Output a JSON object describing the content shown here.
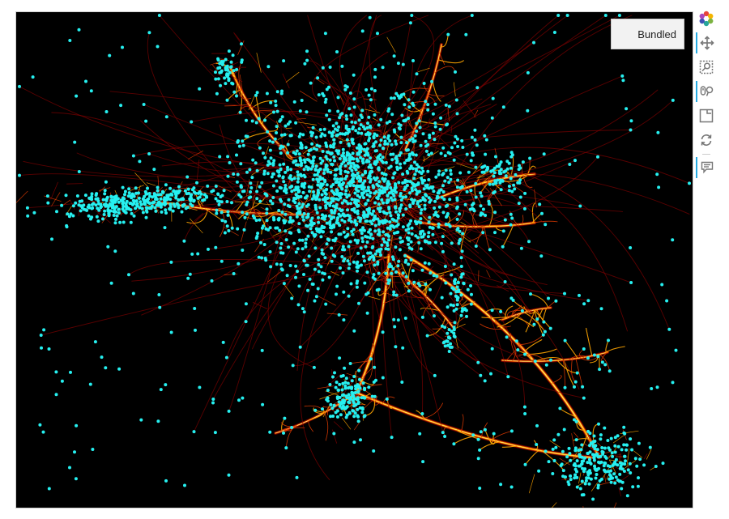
{
  "legend": {
    "label": "Bundled"
  },
  "colors": {
    "background": "#000000",
    "node": "#26f0f0",
    "edge_dark": "#8b0000",
    "edge_mid": "#e03a00",
    "edge_bright": "#ffa500",
    "edge_core": "#ffff99",
    "toolbar_active": "#26aae1"
  },
  "toolbar": {
    "items": [
      {
        "name": "bokeh-logo-icon",
        "label": ""
      },
      {
        "name": "pan-tool-icon",
        "label": ""
      },
      {
        "name": "box-zoom-tool-icon",
        "label": ""
      },
      {
        "name": "wheel-zoom-tool-icon",
        "label": ""
      },
      {
        "name": "save-tool-icon",
        "label": ""
      },
      {
        "name": "reset-tool-icon",
        "label": ""
      },
      {
        "name": "hover-tool-icon",
        "label": ""
      }
    ]
  }
}
